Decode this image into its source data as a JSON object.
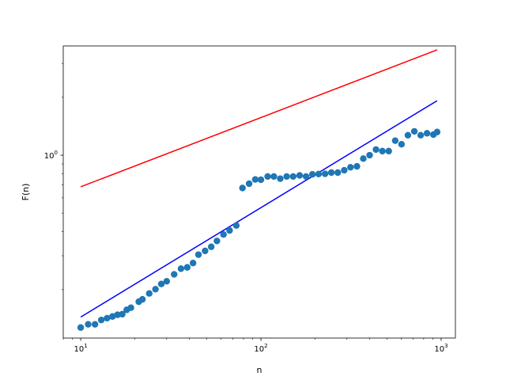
{
  "chart_data": {
    "type": "scatter",
    "title": "",
    "xlabel": "n",
    "ylabel": "F(n)",
    "xscale": "log",
    "yscale": "log",
    "xlim": [
      8.0,
      1200.0
    ],
    "ylim": [
      0.112,
      3.7
    ],
    "grid": false,
    "legend": "none",
    "x_ticks": [
      {
        "base": "10",
        "exp": "1",
        "value": 10
      },
      {
        "base": "10",
        "exp": "2",
        "value": 100
      },
      {
        "base": "10",
        "exp": "3",
        "value": 1000
      }
    ],
    "y_ticks": [
      {
        "base": "10",
        "exp": "0",
        "value": 1
      }
    ],
    "series": [
      {
        "kind": "scatter",
        "color": "#1f77b4",
        "x": [
          10,
          11,
          12,
          13,
          14,
          15,
          16,
          17,
          18,
          19,
          21,
          22,
          24,
          26,
          28,
          30,
          33,
          36,
          39,
          42,
          45,
          49,
          53,
          57,
          62,
          67,
          73,
          79,
          86,
          93,
          100,
          109,
          118,
          128,
          139,
          151,
          164,
          178,
          193,
          209,
          227,
          246,
          267,
          290,
          314,
          341,
          370,
          401,
          435,
          472,
          512,
          556,
          603,
          654,
          710,
          770,
          835,
          906,
          950
        ],
        "y": [
          0.127,
          0.132,
          0.132,
          0.139,
          0.142,
          0.145,
          0.148,
          0.149,
          0.157,
          0.161,
          0.173,
          0.178,
          0.191,
          0.201,
          0.214,
          0.221,
          0.24,
          0.257,
          0.261,
          0.275,
          0.304,
          0.318,
          0.334,
          0.358,
          0.387,
          0.406,
          0.431,
          0.675,
          0.711,
          0.748,
          0.745,
          0.775,
          0.775,
          0.755,
          0.775,
          0.775,
          0.785,
          0.775,
          0.795,
          0.798,
          0.8,
          0.812,
          0.812,
          0.835,
          0.865,
          0.875,
          0.96,
          1.0,
          1.07,
          1.05,
          1.05,
          1.19,
          1.14,
          1.27,
          1.33,
          1.27,
          1.3,
          1.28,
          1.32
        ]
      },
      {
        "kind": "line",
        "color": "#ff0000",
        "x": [
          10,
          950
        ],
        "y": [
          0.685,
          3.53
        ]
      },
      {
        "kind": "line",
        "color": "#0000ff",
        "x": [
          10,
          950
        ],
        "y": [
          0.144,
          1.92
        ]
      }
    ]
  }
}
